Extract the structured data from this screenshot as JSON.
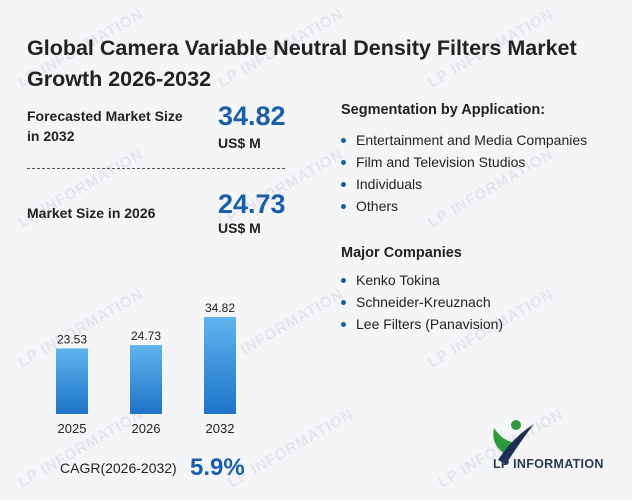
{
  "title": "Global Camera Variable Neutral Density Filters Market Growth 2026-2032",
  "forecast": {
    "label": "Forecasted Market Size in 2032",
    "value": "34.82",
    "unit": "US$ M"
  },
  "current": {
    "label": "Market Size in 2026",
    "value": "24.73",
    "unit": "US$ M"
  },
  "segmentation": {
    "title": "Segmentation by Application:",
    "items": [
      "Entertainment and Media Companies",
      "Film and Television Studios",
      "Individuals",
      "Others"
    ]
  },
  "companies": {
    "title": "Major Companies",
    "items": [
      "Kenko Tokina",
      "Schneider-Kreuznach",
      "Lee Filters (Panavision)"
    ]
  },
  "cagr": {
    "label": "CAGR(2026-2032)",
    "value": "5.9%"
  },
  "logo": {
    "text": "LP INFORMATION"
  },
  "watermark_text": "LP INFORMATION",
  "colors": {
    "accent": "#1a5fa8",
    "bar_top": "#5fb4ee",
    "bar_bottom": "#1e73c8",
    "logo_green": "#2e9b3a",
    "logo_navy": "#1d2d55"
  },
  "chart_data": {
    "type": "bar",
    "categories": [
      "2025",
      "2026",
      "2032"
    ],
    "values": [
      23.53,
      24.73,
      34.82
    ],
    "title": "",
    "xlabel": "",
    "ylabel": "",
    "ylim": [
      0,
      34.82
    ],
    "grid": false,
    "data_labels": true
  }
}
